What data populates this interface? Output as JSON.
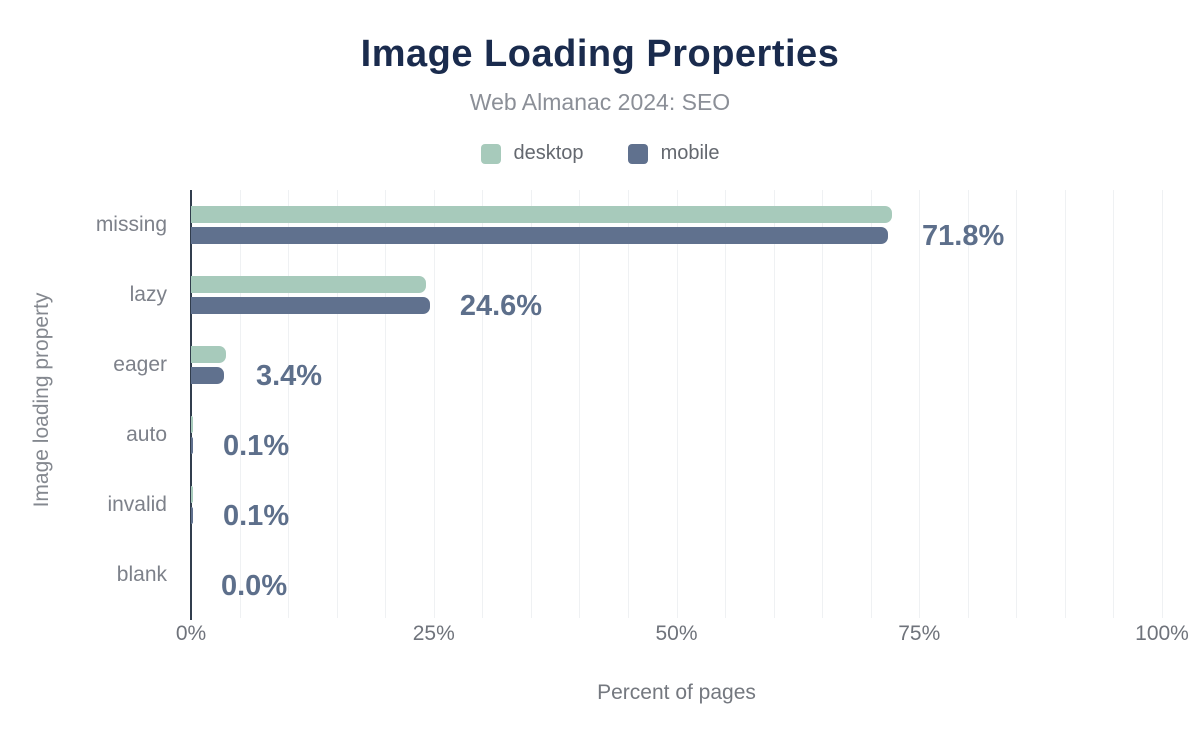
{
  "header": {
    "title": "Image Loading Properties",
    "subtitle": "Web Almanac 2024: SEO"
  },
  "axes": {
    "x_label": "Percent of pages",
    "y_label": "Image loading property",
    "x_ticks": [
      "0%",
      "25%",
      "50%",
      "75%",
      "100%"
    ],
    "x_tick_positions": [
      0,
      25,
      50,
      75,
      100
    ]
  },
  "chart_data": {
    "type": "bar",
    "orientation": "horizontal",
    "title": "Image Loading Properties",
    "subtitle": "Web Almanac 2024: SEO",
    "xlabel": "Percent of pages",
    "ylabel": "Image loading property",
    "xlim": [
      0,
      100
    ],
    "grid": "vertical gridlines every 5%",
    "legend_position": "top",
    "categories": [
      "missing",
      "lazy",
      "eager",
      "auto",
      "invalid",
      "blank"
    ],
    "series": [
      {
        "name": "desktop",
        "color": "#a7cabb",
        "values": [
          72.2,
          24.2,
          3.6,
          0.1,
          0.1,
          0.0
        ]
      },
      {
        "name": "mobile",
        "color": "#60718e",
        "values": [
          71.8,
          24.6,
          3.4,
          0.1,
          0.1,
          0.0
        ]
      }
    ],
    "value_labels": [
      "71.8%",
      "24.6%",
      "3.4%",
      "0.1%",
      "0.1%",
      "0.0%"
    ],
    "value_label_series": "mobile"
  },
  "colors": {
    "title": "#1a2b4d",
    "subtitle": "#8b8f97",
    "value_label": "#5d6f8b",
    "axis_line": "#313d4d",
    "gridline": "#eff1f3",
    "desktop": "#a7cabb",
    "mobile": "#60718e"
  }
}
